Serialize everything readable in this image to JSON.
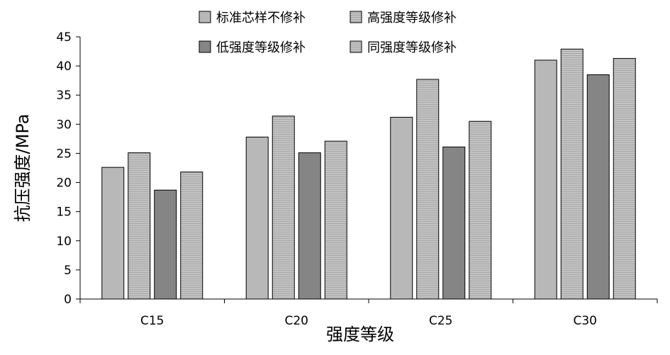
{
  "chart_data": {
    "type": "bar",
    "title": "",
    "xlabel": "强度等级",
    "ylabel": "抗压强度/MPa",
    "categories": [
      "C15",
      "C20",
      "C25",
      "C30"
    ],
    "ylim": [
      0,
      45
    ],
    "yticks": [
      0,
      5,
      10,
      15,
      20,
      25,
      30,
      35,
      40,
      45
    ],
    "grid": false,
    "legend_position": "top-right",
    "series": [
      {
        "name": "标准芯样不修补",
        "values": [
          22.6,
          27.8,
          31.2,
          41.0
        ],
        "color": "#b8b8b8",
        "pattern": "solid"
      },
      {
        "name": "高强度等级修补",
        "values": [
          25.1,
          31.4,
          37.7,
          42.9
        ],
        "color": "#bfbfbf",
        "pattern": "hlines"
      },
      {
        "name": "低强度等级修补",
        "values": [
          18.7,
          25.1,
          26.1,
          38.5
        ],
        "color": "#858585",
        "pattern": "solid"
      },
      {
        "name": "同强度等级修补",
        "values": [
          21.8,
          27.1,
          30.5,
          41.3
        ],
        "color": "#bfbfbf",
        "pattern": "hlines"
      }
    ]
  }
}
